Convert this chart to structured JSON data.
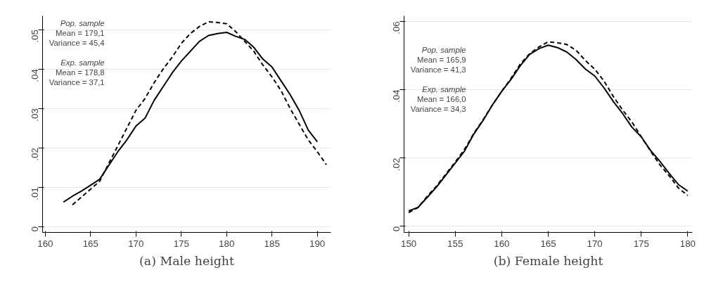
{
  "chart_data": [
    {
      "type": "line",
      "title": "(a) Male height",
      "grid": "y",
      "xlim": [
        159.7,
        191.5
      ],
      "ylim": [
        -0.0015,
        0.0535
      ],
      "xticks": [
        160,
        165,
        170,
        175,
        180,
        185,
        190
      ],
      "yticks": [
        0,
        {
          "value": 0.01,
          "label": ".01"
        },
        {
          "value": 0.02,
          "label": ".02"
        },
        {
          "value": 0.03,
          "label": ".03"
        },
        {
          "value": 0.04,
          "label": ".04"
        },
        {
          "value": 0.05,
          "label": ".05"
        }
      ],
      "annotations": [
        "Pop. sample",
        "Mean = 179,1",
        "Variance = 45,4",
        "Exp. sample",
        "Mean = 178,8",
        "Variance = 37,1"
      ],
      "series": [
        {
          "color": "#000000",
          "line_style": "solid",
          "x": [
            162,
            163,
            164,
            165,
            166,
            167,
            168,
            169,
            170,
            171,
            172,
            173,
            174,
            175,
            176,
            177,
            178,
            179,
            180,
            181,
            182,
            183,
            184,
            185,
            186,
            187,
            188,
            189,
            190
          ],
          "values": [
            0.0062,
            0.0077,
            0.009,
            0.0105,
            0.012,
            0.0155,
            0.019,
            0.022,
            0.0255,
            0.0275,
            0.032,
            0.0355,
            0.039,
            0.042,
            0.0445,
            0.047,
            0.0485,
            0.049,
            0.0493,
            0.0483,
            0.0475,
            0.0455,
            0.0425,
            0.0405,
            0.037,
            0.0335,
            0.0295,
            0.0245,
            0.0215
          ]
        },
        {
          "color": "#000000",
          "line_style": "dashed",
          "x": [
            163,
            164,
            165,
            166,
            167,
            168,
            169,
            170,
            171,
            172,
            173,
            174,
            175,
            176,
            177,
            178,
            179,
            180,
            181,
            182,
            183,
            184,
            185,
            186,
            187,
            188,
            189,
            190,
            191
          ],
          "values": [
            0.0055,
            0.0075,
            0.0095,
            0.0115,
            0.016,
            0.0205,
            0.025,
            0.0295,
            0.0325,
            0.0365,
            0.04,
            0.043,
            0.0465,
            0.049,
            0.0508,
            0.052,
            0.0518,
            0.0515,
            0.0495,
            0.047,
            0.0445,
            0.041,
            0.038,
            0.0345,
            0.03,
            0.026,
            0.022,
            0.019,
            0.0157
          ]
        }
      ]
    },
    {
      "type": "line",
      "title": "(b) Female height",
      "grid": "y",
      "xlim": [
        149.5,
        180.5
      ],
      "ylim": [
        -0.0018,
        0.0616
      ],
      "xticks": [
        150,
        155,
        160,
        165,
        170,
        175,
        180
      ],
      "yticks": [
        0,
        {
          "value": 0.02,
          "label": ".02"
        },
        {
          "value": 0.04,
          "label": ".04"
        },
        {
          "value": 0.06,
          "label": ".06"
        }
      ],
      "annotations": [
        "Pop. sample",
        "Mean = 165,9",
        "Variance = 41,3",
        "Exp. sample",
        "Mean = 166,0",
        "Variance = 34,3"
      ],
      "series": [
        {
          "color": "#000000",
          "line_style": "solid",
          "x": [
            150,
            151,
            152,
            153,
            154,
            155,
            156,
            157,
            158,
            159,
            160,
            161,
            162,
            163,
            164,
            165,
            166,
            167,
            168,
            169,
            170,
            171,
            172,
            173,
            174,
            175,
            176,
            177,
            178,
            179,
            180
          ],
          "values": [
            0.0045,
            0.0055,
            0.0085,
            0.0115,
            0.015,
            0.0185,
            0.022,
            0.027,
            0.031,
            0.0355,
            0.0395,
            0.043,
            0.047,
            0.0503,
            0.052,
            0.053,
            0.0523,
            0.051,
            0.0488,
            0.046,
            0.044,
            0.0405,
            0.0365,
            0.033,
            0.029,
            0.0262,
            0.0222,
            0.019,
            0.0155,
            0.0122,
            0.0103
          ]
        },
        {
          "color": "#000000",
          "line_style": "dashed",
          "x": [
            150,
            151,
            152,
            153,
            154,
            155,
            156,
            157,
            158,
            159,
            160,
            161,
            162,
            163,
            164,
            165,
            166,
            167,
            168,
            169,
            170,
            171,
            172,
            173,
            174,
            175,
            176,
            177,
            178,
            179,
            180
          ],
          "values": [
            0.004,
            0.0055,
            0.0088,
            0.0118,
            0.0153,
            0.0188,
            0.0225,
            0.0272,
            0.0312,
            0.0355,
            0.0395,
            0.0433,
            0.0475,
            0.0505,
            0.0525,
            0.054,
            0.0537,
            0.0532,
            0.0515,
            0.0485,
            0.046,
            0.0425,
            0.038,
            0.034,
            0.0305,
            0.0262,
            0.022,
            0.018,
            0.0148,
            0.0112,
            0.009
          ]
        }
      ]
    }
  ]
}
